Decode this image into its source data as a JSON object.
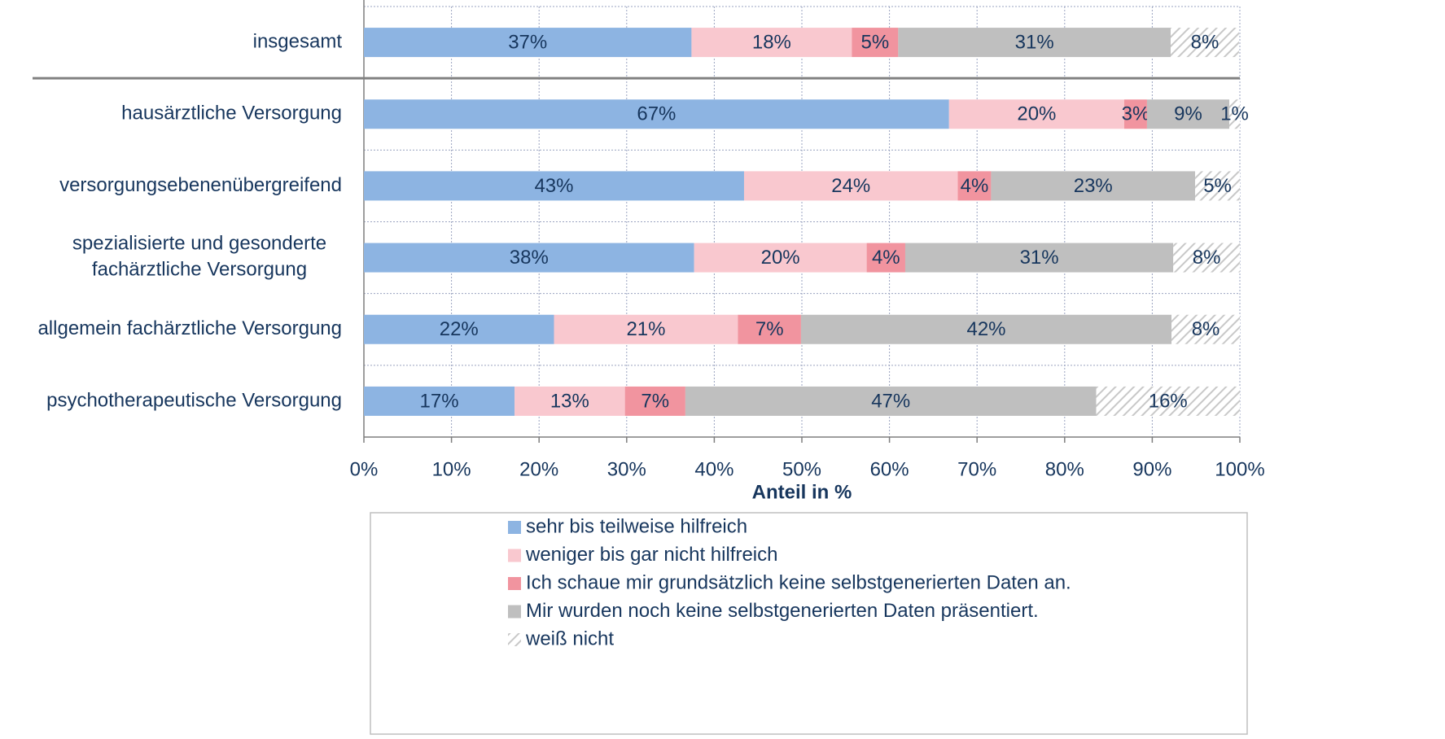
{
  "chart_data": {
    "type": "stacked-barh",
    "x_label": "Anteil in %",
    "categories": [
      "insgesamt",
      "hausärztliche Versorgung",
      "versorgungsebenenübergreifend",
      "spezialisierte und gesonderte\nfachärztliche Versorgung",
      "allgemein fachärztliche Versorgung",
      "psychotherapeutische Versorgung"
    ],
    "series": [
      {
        "name": "sehr bis teilweise hilfreich",
        "color": "#8db4e2",
        "values": [
          37.4,
          66.8,
          43.4,
          37.7,
          21.7,
          17.2
        ],
        "value_labels": [
          "37%",
          "67%",
          "43%",
          "38%",
          "22%",
          "17%"
        ]
      },
      {
        "name": "weniger bis gar nicht hilfreich",
        "color": "#f9c8cf",
        "values": [
          18.3,
          20.0,
          24.4,
          19.7,
          21.0,
          12.6
        ],
        "value_labels": [
          "18%",
          "20%",
          "24%",
          "20%",
          "21%",
          "13%"
        ]
      },
      {
        "name": "Ich schaue mir grundsätzlich keine selbstgenerierten Daten an.",
        "color": "#f1949f",
        "values": [
          5.3,
          2.6,
          3.8,
          4.4,
          7.2,
          6.9
        ],
        "value_labels": [
          "5%",
          "3%",
          "4%",
          "4%",
          "7%",
          "7%"
        ]
      },
      {
        "name": "Mir wurden noch keine selbstgenerierten Daten präsentiert.",
        "color": "#bfbfbf",
        "values": [
          31.1,
          9.4,
          23.3,
          30.6,
          42.3,
          46.9
        ],
        "value_labels": [
          "31%",
          "9%",
          "23%",
          "31%",
          "42%",
          "47%"
        ]
      },
      {
        "name": "weiß nicht",
        "color": "#d4d4d4",
        "hatch": true,
        "values": [
          7.8,
          1.2,
          5.1,
          7.6,
          7.8,
          16.4
        ],
        "value_labels": [
          "8%",
          "1%",
          "5%",
          "8%",
          "8%",
          "16%"
        ]
      }
    ],
    "xlim": [
      0,
      100
    ],
    "xticks": [
      {
        "value": 0,
        "label": "0%"
      },
      {
        "value": 10,
        "label": "10%"
      },
      {
        "value": 20,
        "label": "20%"
      },
      {
        "value": 30,
        "label": "30%"
      },
      {
        "value": 40,
        "label": "40%"
      },
      {
        "value": 50,
        "label": "50%"
      },
      {
        "value": 60,
        "label": "60%"
      },
      {
        "value": 70,
        "label": "70%"
      },
      {
        "value": 80,
        "label": "80%"
      },
      {
        "value": 90,
        "label": "90%"
      },
      {
        "value": 100,
        "label": "100%"
      }
    ],
    "grid": true,
    "legend": "bottom"
  }
}
